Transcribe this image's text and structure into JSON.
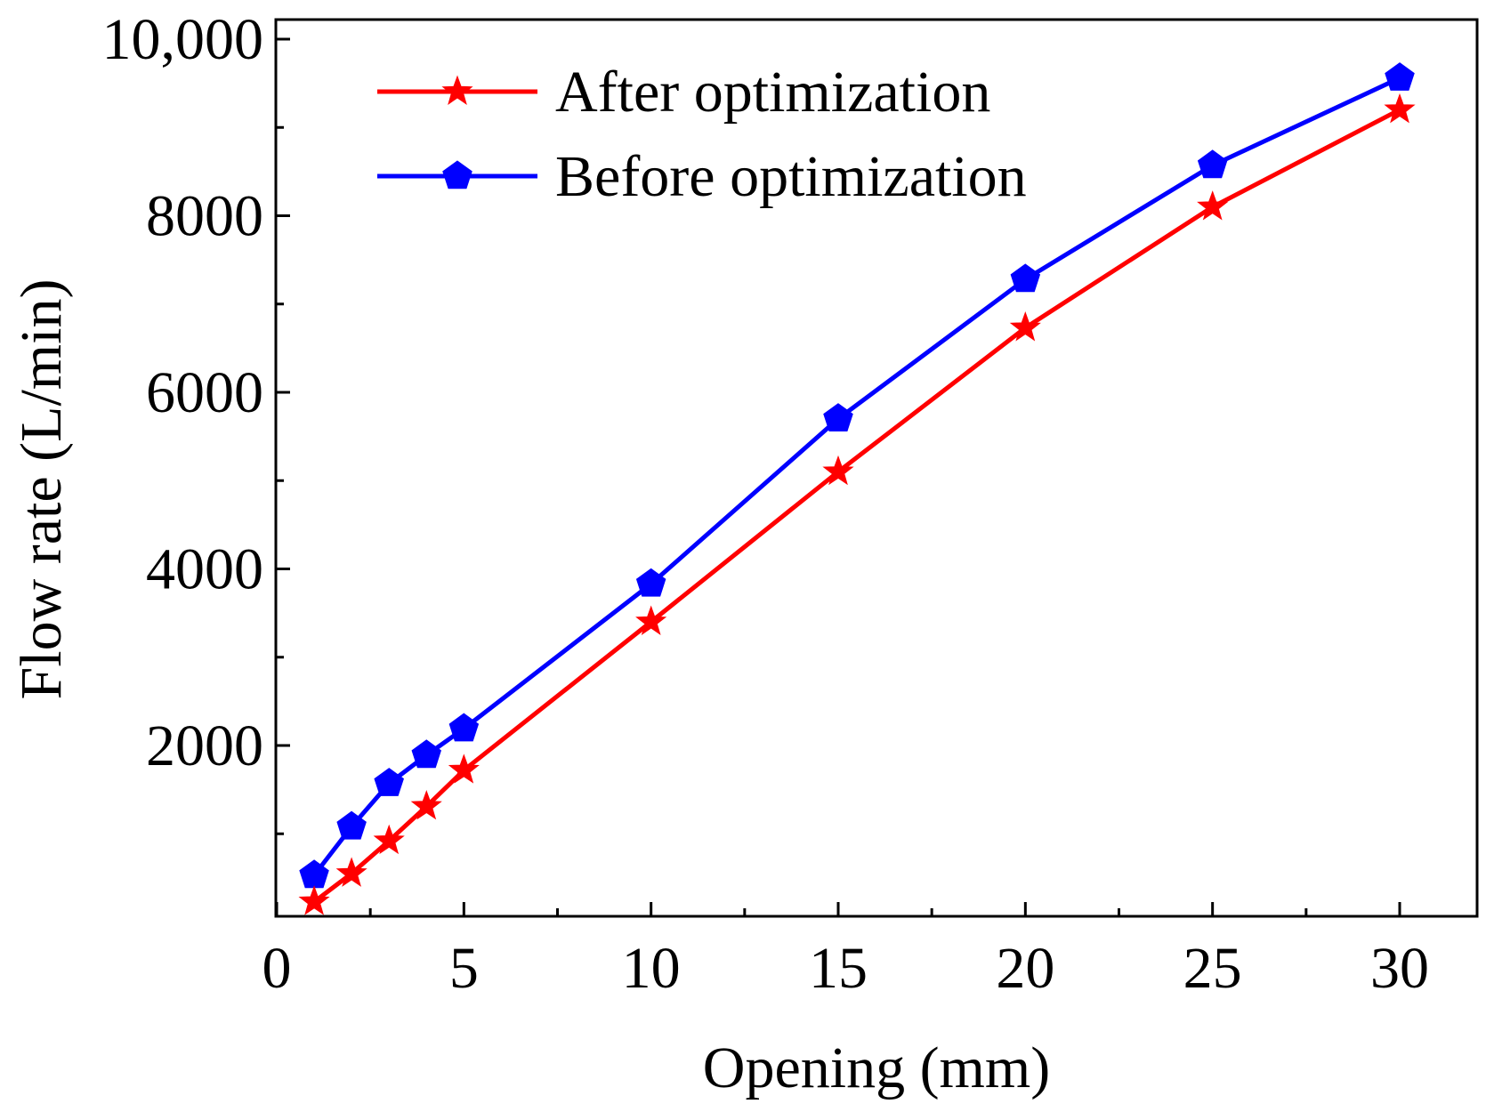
{
  "chart_data": {
    "type": "line",
    "title": "",
    "xlabel": "Opening (mm)",
    "ylabel": "Flow rate (L/min)",
    "xlim": [
      0,
      32
    ],
    "ylim": [
      0,
      10300
    ],
    "x_ticks": [
      0,
      5,
      10,
      15,
      20,
      25,
      30
    ],
    "x_tick_labels": [
      "0",
      "5",
      "10",
      "15",
      "20",
      "25",
      "30"
    ],
    "y_ticks": [
      2000,
      4000,
      6000,
      8000,
      10000
    ],
    "y_tick_labels": [
      "2000",
      "4000",
      "6000",
      "8000",
      "10,000"
    ],
    "legend_position": "top-left",
    "x": [
      1,
      2,
      3,
      4,
      5,
      10,
      15,
      20,
      25,
      30
    ],
    "series": [
      {
        "name": "After optimization",
        "color": "#ff0000",
        "marker": "star",
        "values": [
          230,
          550,
          920,
          1310,
          1720,
          3400,
          5100,
          6730,
          8100,
          9200
        ]
      },
      {
        "name": "Before optimization",
        "color": "#0000ff",
        "marker": "pentagon",
        "values": [
          530,
          1080,
          1570,
          1890,
          2190,
          3830,
          5700,
          7280,
          8570,
          9560
        ]
      }
    ]
  }
}
